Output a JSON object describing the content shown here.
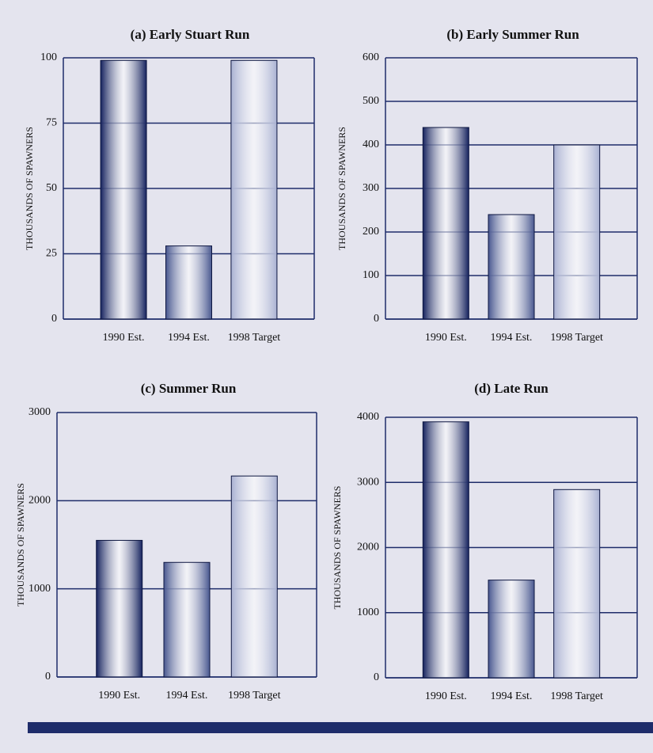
{
  "chart_data": [
    {
      "type": "bar",
      "title": "(a) Early Stuart Run",
      "y_label": "THOUSANDS OF SPAWNERS",
      "categories": [
        "1990 Est.",
        "1994 Est.",
        "1998 Target"
      ],
      "values": [
        99,
        28,
        99
      ],
      "colors": [
        "#15225e",
        "#48578f",
        "#a9b1d2"
      ],
      "ylim": [
        0,
        100
      ],
      "yticks": [
        0,
        25,
        50,
        75,
        100
      ],
      "grid": true
    },
    {
      "type": "bar",
      "title": "(b) Early Summer Run",
      "y_label": "THOUSANDS OF SPAWNERS",
      "categories": [
        "1990 Est.",
        "1994 Est.",
        "1998 Target"
      ],
      "values": [
        440,
        240,
        400
      ],
      "colors": [
        "#15225e",
        "#48578f",
        "#a9b1d2"
      ],
      "ylim": [
        0,
        600
      ],
      "yticks": [
        0,
        100,
        200,
        300,
        400,
        500,
        600
      ],
      "grid": true
    },
    {
      "type": "bar",
      "title": "(c) Summer Run",
      "y_label": "THOUSANDS OF SPAWNERS",
      "categories": [
        "1990 Est.",
        "1994 Est.",
        "1998 Target"
      ],
      "values": [
        1550,
        1300,
        2280
      ],
      "colors": [
        "#15225e",
        "#48578f",
        "#a9b1d2"
      ],
      "ylim": [
        0,
        3000
      ],
      "yticks": [
        0,
        1000,
        2000,
        3000
      ],
      "grid": true
    },
    {
      "type": "bar",
      "title": "(d) Late Run",
      "y_label": "THOUSANDS OF SPAWNERS",
      "categories": [
        "1990 Est.",
        "1994 Est.",
        "1998 Target"
      ],
      "values": [
        3930,
        1500,
        2890
      ],
      "colors": [
        "#15225e",
        "#48578f",
        "#a9b1d2"
      ],
      "ylim": [
        0,
        4000
      ],
      "yticks": [
        0,
        1000,
        2000,
        3000,
        4000
      ],
      "grid": true
    }
  ]
}
